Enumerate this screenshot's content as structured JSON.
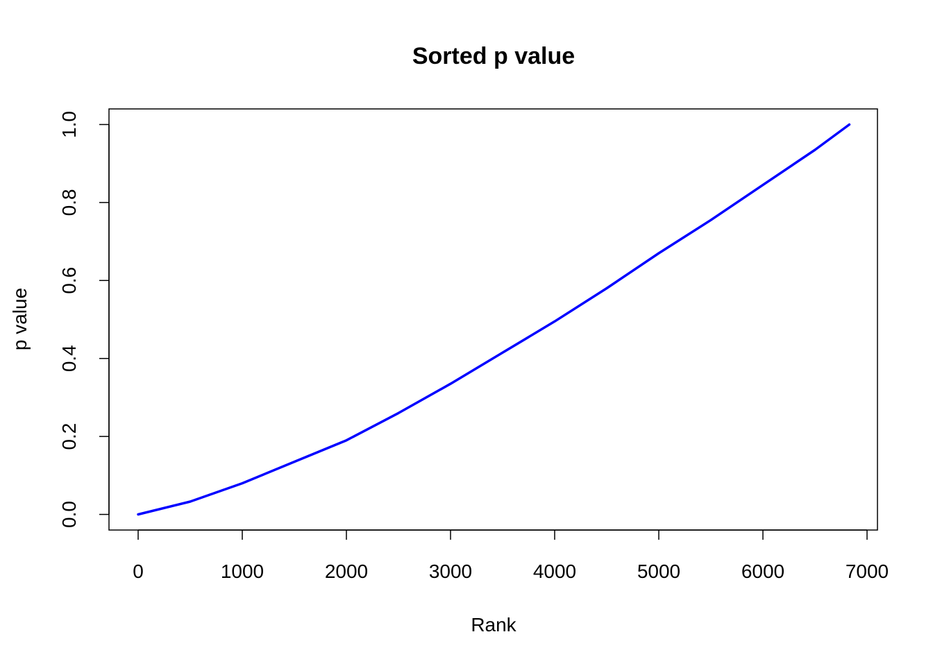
{
  "chart_data": {
    "type": "line",
    "title": "Sorted p value",
    "xlabel": "Rank",
    "ylabel": "p value",
    "xlim": [
      -280,
      7100
    ],
    "ylim": [
      -0.04,
      1.04
    ],
    "xticks": [
      0,
      1000,
      2000,
      3000,
      4000,
      5000,
      6000,
      7000
    ],
    "xtick_labels": [
      "0",
      "1000",
      "2000",
      "3000",
      "4000",
      "5000",
      "6000",
      "7000"
    ],
    "yticks": [
      0.0,
      0.2,
      0.4,
      0.6,
      0.8,
      1.0
    ],
    "ytick_labels": [
      "0.0",
      "0.2",
      "0.4",
      "0.6",
      "0.8",
      "1.0"
    ],
    "grid": false,
    "series": [
      {
        "color": "#0000ff",
        "x": [
          0,
          500,
          1000,
          1500,
          2000,
          2500,
          3000,
          3500,
          4000,
          4500,
          5000,
          5500,
          6000,
          6500,
          6830
        ],
        "y": [
          0.0,
          0.033,
          0.08,
          0.135,
          0.19,
          0.26,
          0.335,
          0.415,
          0.495,
          0.58,
          0.67,
          0.755,
          0.845,
          0.935,
          1.0
        ]
      }
    ]
  }
}
